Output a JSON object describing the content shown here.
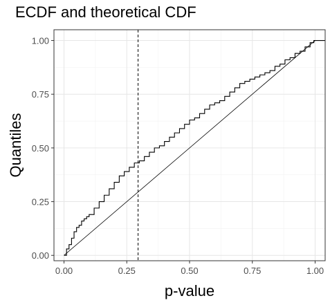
{
  "chart_data": {
    "type": "line",
    "title": "ECDF and theoretical CDF",
    "xlabel": "p-value",
    "ylabel": "Quantiles",
    "xlim": [
      -0.04,
      1.04
    ],
    "ylim": [
      -0.025,
      1.05
    ],
    "x_ticks": [
      0.0,
      0.25,
      0.5,
      0.75,
      1.0
    ],
    "x_tick_labels": [
      "0.00",
      "0.25",
      "0.50",
      "0.75",
      "1.00"
    ],
    "y_ticks": [
      0.0,
      0.25,
      0.5,
      0.75,
      1.0
    ],
    "y_tick_labels": [
      "0.00",
      "0.25",
      "0.50",
      "0.75",
      "1.00"
    ],
    "grid": true,
    "reference_line_x": 0.295,
    "series": [
      {
        "style": "step",
        "x": [
          0.0,
          0.01,
          0.02,
          0.03,
          0.04,
          0.05,
          0.06,
          0.07,
          0.08,
          0.09,
          0.1,
          0.12,
          0.14,
          0.16,
          0.18,
          0.2,
          0.22,
          0.24,
          0.26,
          0.28,
          0.3,
          0.32,
          0.34,
          0.36,
          0.38,
          0.4,
          0.42,
          0.44,
          0.46,
          0.48,
          0.5,
          0.52,
          0.54,
          0.56,
          0.58,
          0.6,
          0.62,
          0.64,
          0.66,
          0.68,
          0.7,
          0.72,
          0.74,
          0.76,
          0.78,
          0.8,
          0.82,
          0.84,
          0.86,
          0.88,
          0.9,
          0.92,
          0.94,
          0.96,
          0.98,
          0.995,
          1.0,
          1.04
        ],
        "y": [
          0.0,
          0.03,
          0.05,
          0.08,
          0.11,
          0.13,
          0.14,
          0.16,
          0.17,
          0.18,
          0.19,
          0.22,
          0.25,
          0.28,
          0.31,
          0.34,
          0.37,
          0.39,
          0.41,
          0.43,
          0.44,
          0.46,
          0.48,
          0.5,
          0.51,
          0.53,
          0.55,
          0.57,
          0.59,
          0.61,
          0.63,
          0.64,
          0.66,
          0.68,
          0.7,
          0.71,
          0.72,
          0.74,
          0.76,
          0.78,
          0.8,
          0.81,
          0.82,
          0.83,
          0.84,
          0.85,
          0.86,
          0.88,
          0.89,
          0.91,
          0.92,
          0.94,
          0.95,
          0.97,
          0.99,
          1.0,
          1.0,
          1.0
        ]
      },
      {
        "style": "line",
        "x": [
          0.0,
          1.0,
          1.04
        ],
        "y": [
          0.0,
          1.0,
          1.0
        ]
      }
    ]
  }
}
